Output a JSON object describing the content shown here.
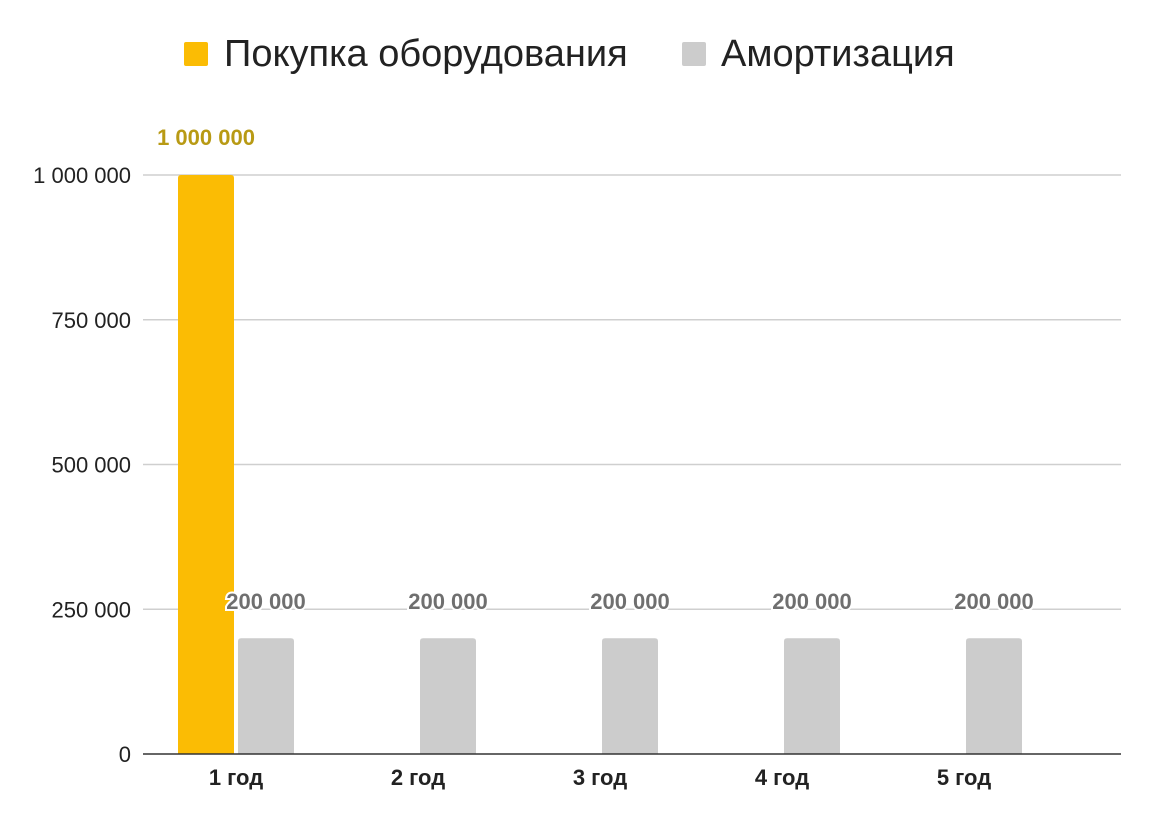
{
  "chart_data": {
    "type": "bar",
    "title": "",
    "xlabel": "",
    "ylabel": "",
    "categories": [
      "1 год",
      "2 год",
      "3 год",
      "4 год",
      "5 год"
    ],
    "series": [
      {
        "name": "Покупка оборудования",
        "color": "#FBBC04",
        "label_color": "#B89A14",
        "values": [
          1000000,
          null,
          null,
          null,
          null
        ],
        "value_labels": [
          "1 000 000",
          "",
          "",
          "",
          ""
        ]
      },
      {
        "name": "Амортизация",
        "color": "#CCCCCC",
        "label_color": "#6F6F6F",
        "values": [
          200000,
          200000,
          200000,
          200000,
          200000
        ],
        "value_labels": [
          "200 000",
          "200 000",
          "200 000",
          "200 000",
          "200 000"
        ]
      }
    ],
    "ylim": [
      0,
      1000000
    ],
    "yticks": [
      0,
      250000,
      500000,
      750000,
      1000000
    ],
    "ytick_labels": [
      "0",
      "250 000",
      "500 000",
      "750 000",
      "1 000 000"
    ],
    "grid": true,
    "legend_position": "top-center"
  }
}
